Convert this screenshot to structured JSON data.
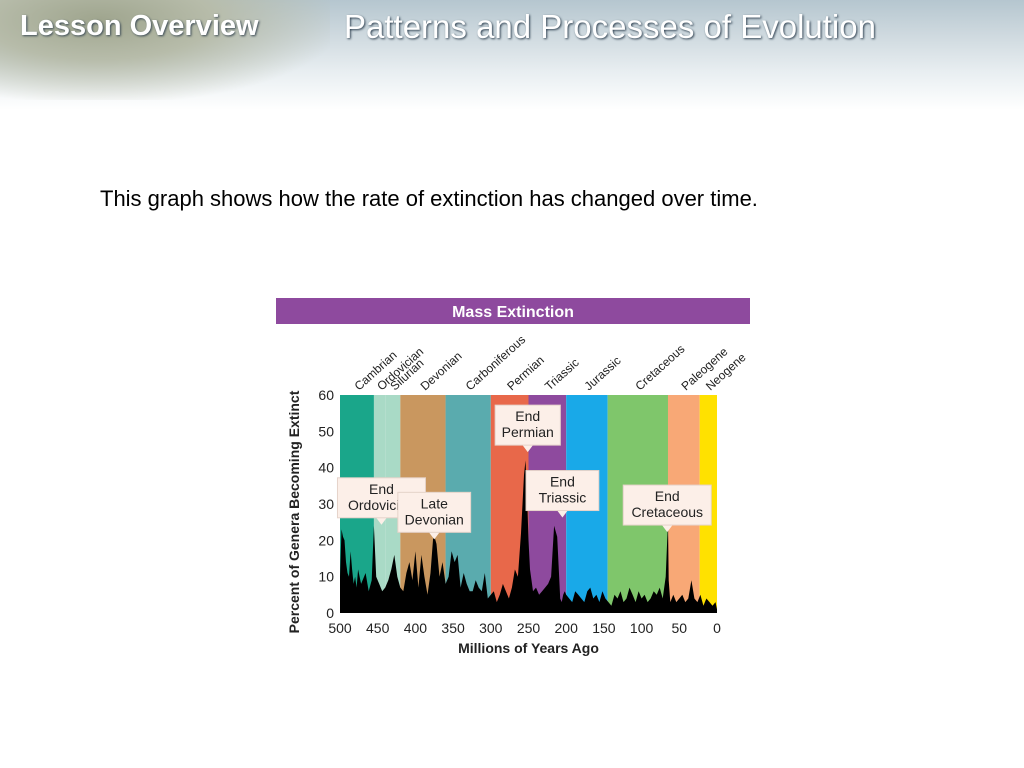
{
  "header": {
    "left_label": "Lesson Overview",
    "title": "Patterns and Processes of Evolution"
  },
  "caption": "This graph shows how the rate of extinction has changed over time.",
  "chart_data": {
    "type": "area",
    "title": "Mass Extinction",
    "xlabel": "Millions of Years Ago",
    "ylabel": "Percent of Genera Becoming Extinct",
    "xlim": [
      500,
      0
    ],
    "ylim": [
      0,
      60
    ],
    "xticks": [
      500,
      450,
      400,
      350,
      300,
      250,
      200,
      150,
      100,
      50,
      0
    ],
    "yticks": [
      0,
      10,
      20,
      30,
      40,
      50,
      60
    ],
    "title_bar_color": "#8e4a9e",
    "series_color": "#000000",
    "periods": [
      {
        "name": "Cambrian",
        "start": 500,
        "end": 455,
        "color": "#1aa68a"
      },
      {
        "name": "Ordovician",
        "start": 455,
        "end": 440,
        "color": "#a9dac6"
      },
      {
        "name": "Silurian",
        "start": 440,
        "end": 420,
        "color": "#a9dac6"
      },
      {
        "name": "Devonian",
        "start": 420,
        "end": 360,
        "color": "#c9975f"
      },
      {
        "name": "Carboniferous",
        "start": 360,
        "end": 300,
        "color": "#5aabae"
      },
      {
        "name": "Permian",
        "start": 300,
        "end": 250,
        "color": "#e8684a"
      },
      {
        "name": "Triassic",
        "start": 250,
        "end": 200,
        "color": "#8e4a9e"
      },
      {
        "name": "Jurassic",
        "start": 200,
        "end": 145,
        "color": "#19a9e8"
      },
      {
        "name": "Cretaceous",
        "start": 145,
        "end": 65,
        "color": "#7fc66b"
      },
      {
        "name": "Paleogene",
        "start": 65,
        "end": 23,
        "color": "#f8a876"
      },
      {
        "name": "Neogene",
        "start": 23,
        "end": 0,
        "color": "#ffe100"
      }
    ],
    "series": [
      {
        "x": [
          500,
          498,
          496,
          494,
          492,
          490,
          488,
          486,
          484,
          482,
          480,
          478,
          476,
          474,
          472,
          470,
          466,
          462,
          458,
          455,
          452,
          448,
          444,
          440,
          436,
          432,
          428,
          424,
          420,
          416,
          412,
          408,
          404,
          400,
          396,
          392,
          388,
          384,
          380,
          376,
          372,
          368,
          364,
          360,
          356,
          352,
          348,
          344,
          340,
          336,
          332,
          328,
          324,
          320,
          316,
          312,
          308,
          304,
          300,
          296,
          292,
          288,
          284,
          280,
          276,
          272,
          268,
          264,
          260,
          256,
          254,
          252,
          250,
          248,
          246,
          244,
          240,
          236,
          232,
          228,
          224,
          220,
          216,
          212,
          208,
          206,
          204,
          202,
          200,
          196,
          192,
          188,
          184,
          180,
          176,
          172,
          168,
          164,
          160,
          156,
          152,
          148,
          144,
          140,
          136,
          132,
          128,
          124,
          120,
          116,
          112,
          108,
          104,
          100,
          96,
          92,
          88,
          84,
          80,
          76,
          72,
          68,
          66,
          65,
          64,
          62,
          58,
          54,
          50,
          46,
          42,
          38,
          34,
          30,
          26,
          22,
          18,
          14,
          10,
          6,
          2,
          0
        ],
        "y": [
          10,
          23,
          21,
          20,
          14,
          11,
          10,
          17,
          12,
          8,
          10,
          7,
          12,
          10,
          8,
          9,
          11,
          6,
          9,
          24,
          10,
          8,
          6,
          7,
          9,
          12,
          16,
          10,
          7,
          6,
          11,
          14,
          9,
          17,
          7,
          16,
          10,
          5,
          11,
          22,
          19,
          10,
          14,
          8,
          10,
          17,
          14,
          16,
          7,
          11,
          8,
          6,
          6,
          9,
          7,
          6,
          11,
          4,
          5,
          6,
          3,
          5,
          8,
          6,
          4,
          7,
          12,
          10,
          22,
          38,
          42,
          33,
          20,
          12,
          9,
          6,
          7,
          5,
          6,
          7,
          8,
          10,
          24,
          21,
          4,
          3,
          5,
          6,
          5,
          4,
          3,
          6,
          5,
          4,
          3,
          6,
          7,
          4,
          5,
          3,
          6,
          4,
          3,
          2,
          5,
          4,
          6,
          3,
          4,
          7,
          5,
          3,
          6,
          4,
          5,
          3,
          4,
          6,
          5,
          7,
          4,
          10,
          20,
          25,
          9,
          3,
          5,
          3,
          4,
          5,
          3,
          4,
          9,
          4,
          3,
          5,
          2,
          4,
          3,
          2,
          3,
          1
        ]
      }
    ],
    "annotations": [
      {
        "text": [
          "End",
          "Ordovician"
        ],
        "x": 445,
        "y": 24
      },
      {
        "text": [
          "Late",
          "Devonian"
        ],
        "x": 375,
        "y": 20
      },
      {
        "text": [
          "End",
          "Permian"
        ],
        "x": 251,
        "y": 44
      },
      {
        "text": [
          "End",
          "Triassic"
        ],
        "x": 205,
        "y": 26
      },
      {
        "text": [
          "End",
          "Cretaceous"
        ],
        "x": 66,
        "y": 22
      }
    ]
  }
}
